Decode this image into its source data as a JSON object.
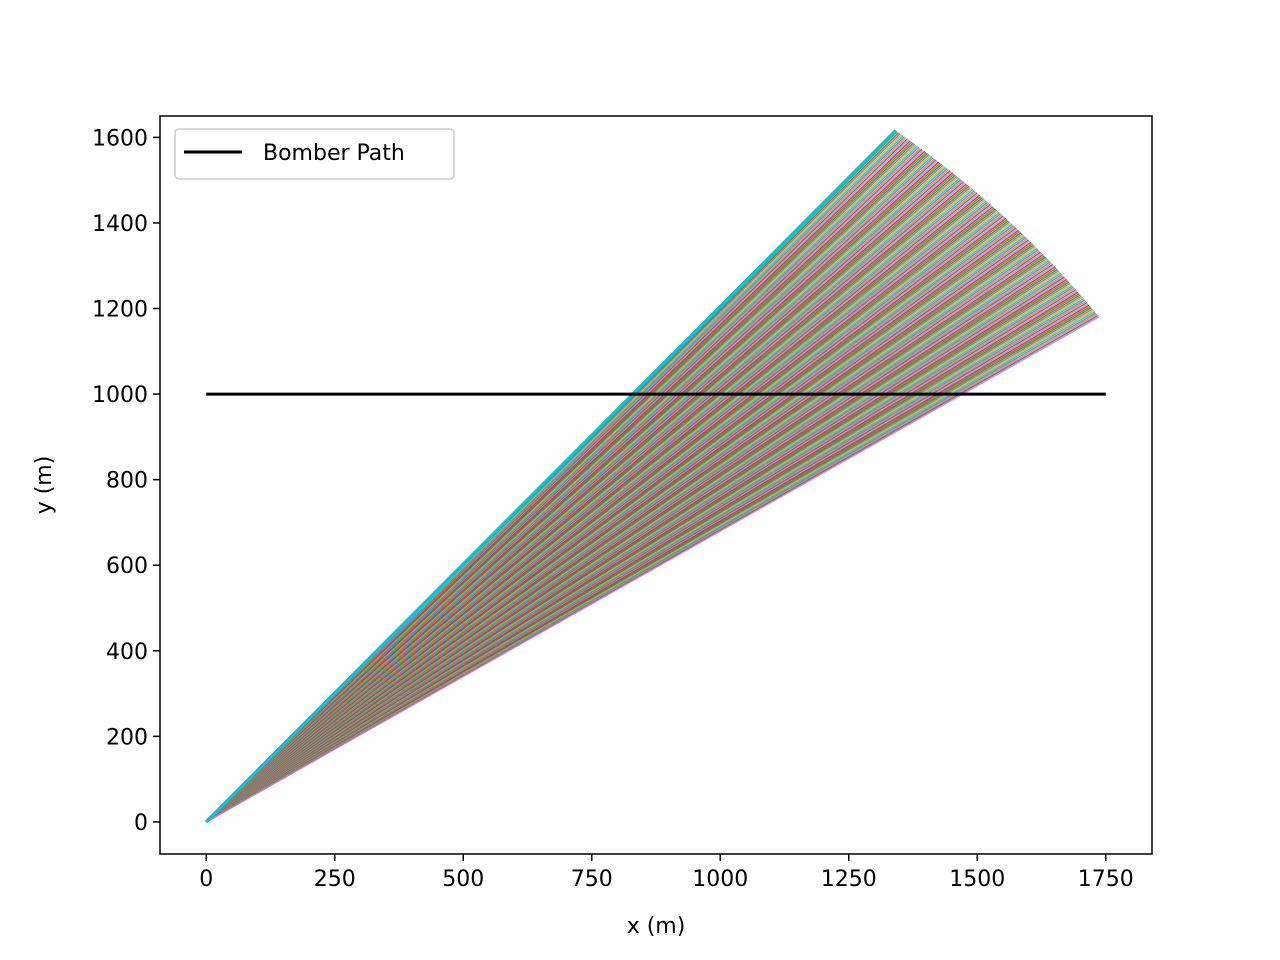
{
  "chart_data": {
    "type": "line",
    "title": "",
    "xlabel": "x (m)",
    "ylabel": "y (m)",
    "xlim": [
      -90,
      1840
    ],
    "ylim": [
      -75,
      1650
    ],
    "xticks": [
      0,
      250,
      500,
      750,
      1000,
      1250,
      1500,
      1750
    ],
    "yticks": [
      0,
      200,
      400,
      600,
      800,
      1000,
      1200,
      1400,
      1600
    ],
    "grid": false,
    "legend": {
      "placement": "top-left",
      "entries": [
        "Bomber Path"
      ]
    },
    "series": [
      {
        "name": "Bomber Path",
        "color": "#000000",
        "points": [
          [
            0,
            1000
          ],
          [
            1750,
            1000
          ]
        ]
      }
    ],
    "fan": {
      "origin": [
        0,
        0
      ],
      "radius": 2100,
      "angle_start_deg": 50.3,
      "angle_end_deg": 34.2,
      "line_count": 160,
      "colors": [
        "#d62728",
        "#2ca02c",
        "#8c564b",
        "#7f7f7f",
        "#bcbd22",
        "#17becf",
        "#9467bd",
        "#ff7f0e",
        "#1f77b4",
        "#e377c2"
      ],
      "edge_color": "#17becf"
    }
  }
}
